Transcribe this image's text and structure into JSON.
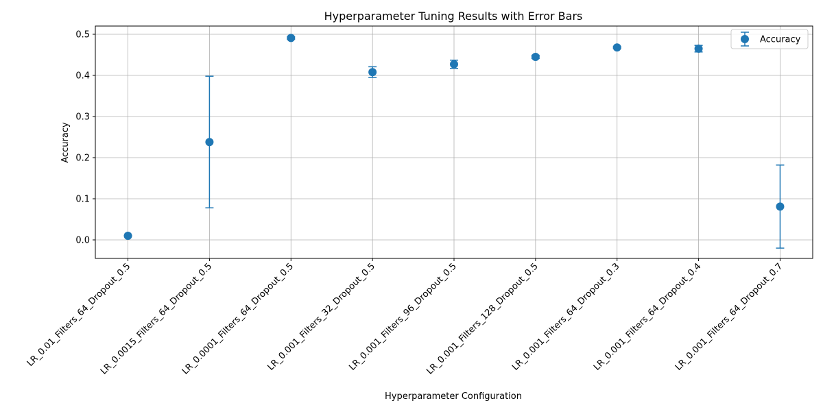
{
  "chart_data": {
    "type": "scatter",
    "title": "Hyperparameter Tuning Results with Error Bars",
    "xlabel": "Hyperparameter Configuration",
    "ylabel": "Accuracy",
    "categories": [
      "LR_0.01_Filters_64_Dropout_0.5",
      "LR_0.0015_Filters_64_Dropout_0.5",
      "LR_0.0001_Filters_64_Dropout_0.5",
      "LR_0.001_Filters_32_Dropout_0.5",
      "LR_0.001_Filters_96_Dropout_0.5",
      "LR_0.001_Filters_128_Dropout_0.5",
      "LR_0.001_Filters_64_Dropout_0.3",
      "LR_0.001_Filters_64_Dropout_0.4",
      "LR_0.001_Filters_64_Dropout_0.7"
    ],
    "series": [
      {
        "name": "Accuracy",
        "values": [
          0.01,
          0.238,
          0.491,
          0.408,
          0.427,
          0.445,
          0.468,
          0.465,
          0.081
        ],
        "errors": [
          0.0,
          0.16,
          0.003,
          0.013,
          0.01,
          0.004,
          0.002,
          0.008,
          0.101
        ],
        "color": "#1f77b4"
      }
    ],
    "ylim": [
      -0.045,
      0.52
    ],
    "yticks": [
      0.0,
      0.1,
      0.2,
      0.3,
      0.4,
      0.5
    ],
    "ytick_labels": [
      "0.0",
      "0.1",
      "0.2",
      "0.3",
      "0.4",
      "0.5"
    ],
    "grid": true,
    "legend_position": "top-right"
  }
}
